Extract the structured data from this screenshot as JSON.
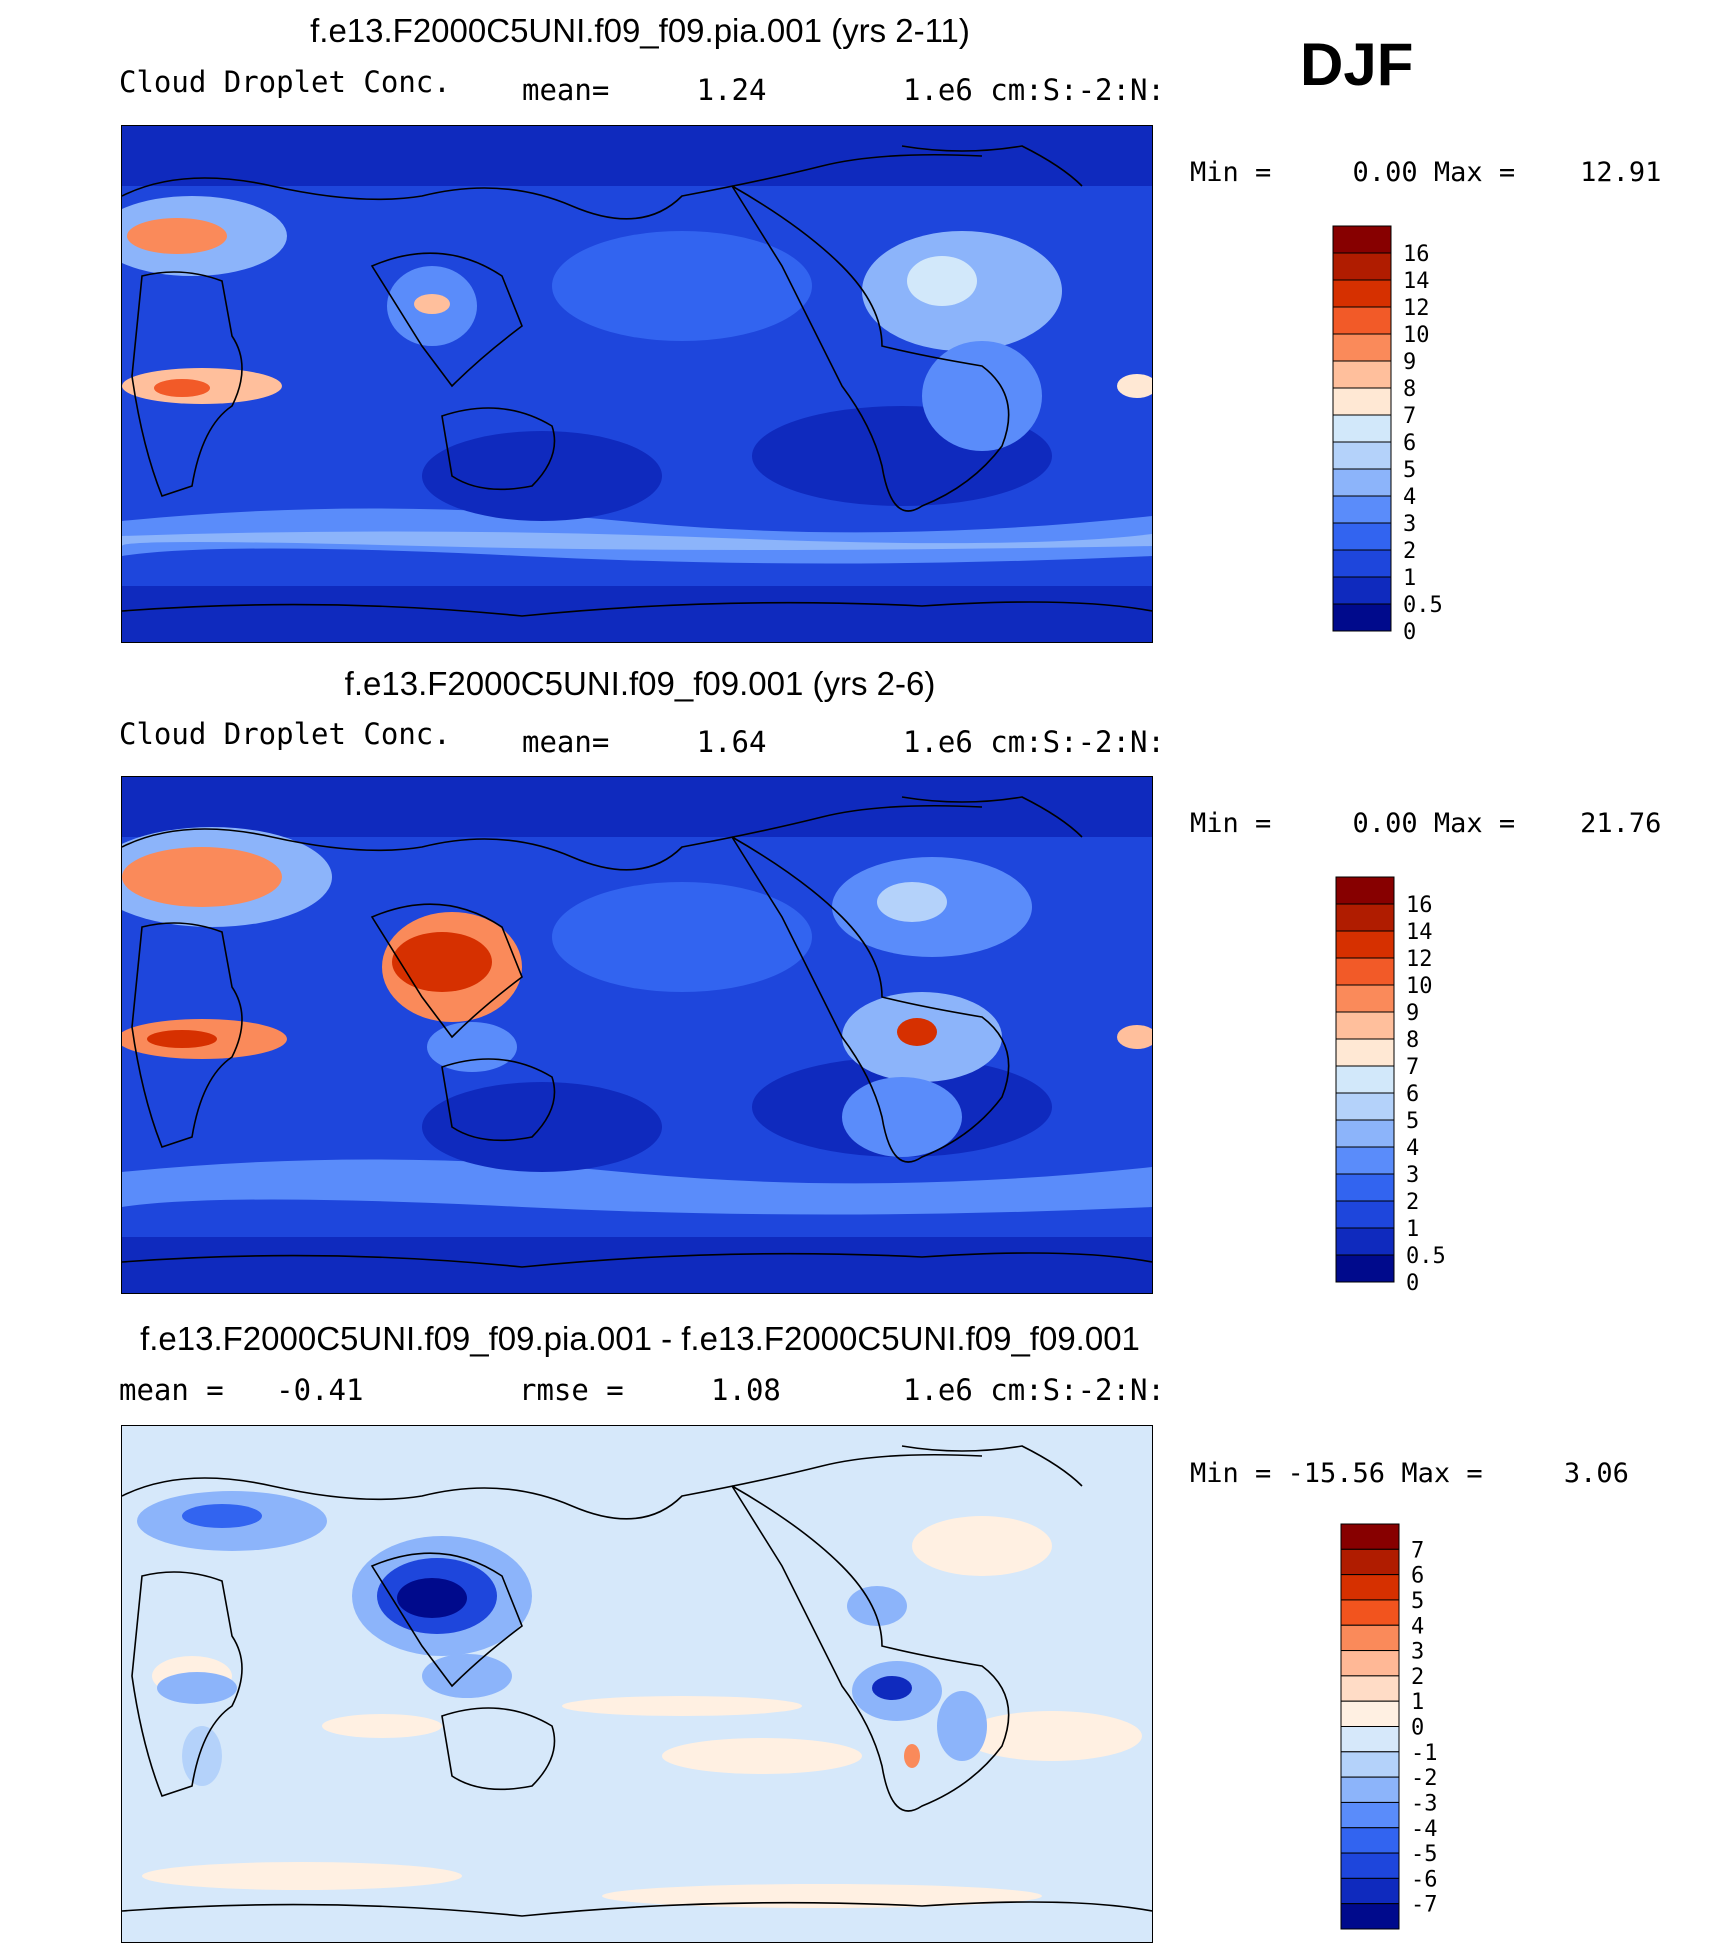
{
  "season": "DJF",
  "panels": [
    {
      "title": "f.e13.F2000C5UNI.f09_f09.pia.001 (yrs 2-11)",
      "stats_left": "Cloud Droplet Conc.",
      "stats_mid": "mean=     1.24",
      "units": "1.e6 cm:S:-2:N:",
      "minmax": "Min =     0.00 Max =    12.91",
      "mean": 1.24,
      "min": 0.0,
      "max": 12.91,
      "colorbar_labels": [
        "16",
        "14",
        "12",
        "10",
        "9",
        "8",
        "7",
        "6",
        "5",
        "4",
        "3",
        "2",
        "1",
        "0.5",
        "0"
      ],
      "colors": [
        "#870000",
        "#b01c00",
        "#d63000",
        "#f25a28",
        "#fa8a5a",
        "#ffbf9c",
        "#ffe8d4",
        "#d2e8fa",
        "#b4d2fa",
        "#8cb4fa",
        "#5a8cfa",
        "#3264f0",
        "#1e46dc",
        "#0f2abe",
        "#000a8c"
      ]
    },
    {
      "title": "f.e13.F2000C5UNI.f09_f09.001 (yrs 2-6)",
      "stats_left": "Cloud Droplet Conc.",
      "stats_mid": "mean=     1.64",
      "units": "1.e6 cm:S:-2:N:",
      "minmax": "Min =     0.00 Max =    21.76",
      "mean": 1.64,
      "min": 0.0,
      "max": 21.76,
      "colorbar_labels": [
        "16",
        "14",
        "12",
        "10",
        "9",
        "8",
        "7",
        "6",
        "5",
        "4",
        "3",
        "2",
        "1",
        "0.5",
        "0"
      ],
      "colors": [
        "#870000",
        "#b01c00",
        "#d63000",
        "#f25a28",
        "#fa8a5a",
        "#ffbf9c",
        "#ffe8d4",
        "#d2e8fa",
        "#b4d2fa",
        "#8cb4fa",
        "#5a8cfa",
        "#3264f0",
        "#1e46dc",
        "#0f2abe",
        "#000a8c"
      ]
    },
    {
      "title": "f.e13.F2000C5UNI.f09_f09.pia.001 - f.e13.F2000C5UNI.f09_f09.001",
      "stats_left": "mean =   -0.41",
      "stats_mid": "rmse =     1.08",
      "units": "1.e6 cm:S:-2:N:",
      "minmax": "Min = -15.56 Max =     3.06",
      "mean": -0.41,
      "rmse": 1.08,
      "min": -15.56,
      "max": 3.06,
      "colorbar_labels": [
        "7",
        "6",
        "5",
        "4",
        "3",
        "2",
        "1",
        "0",
        "-1",
        "-2",
        "-3",
        "-4",
        "-5",
        "-6",
        "-7"
      ],
      "colors": [
        "#870000",
        "#b01c00",
        "#d63000",
        "#f2541e",
        "#fa8a5a",
        "#ffb896",
        "#ffdcc6",
        "#fff0e2",
        "#d6e8fa",
        "#b4d2fa",
        "#8cb4fa",
        "#5a8cfa",
        "#3264f0",
        "#1e46dc",
        "#0f2abe",
        "#000a8c"
      ]
    }
  ]
}
